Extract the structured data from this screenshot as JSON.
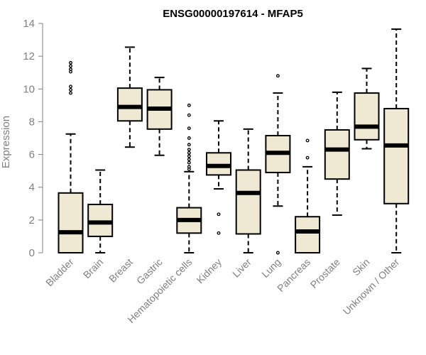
{
  "chart_data": {
    "type": "boxplot",
    "title": "ENSG00000197614 - MFAP5",
    "xlabel": "",
    "ylabel": "Expression",
    "ylim": [
      0,
      14
    ],
    "yticks": [
      0,
      2,
      4,
      6,
      8,
      10,
      12,
      14
    ],
    "box_fill": "#efe8d2",
    "categories": [
      "Bladder",
      "Brain",
      "Breast",
      "Gastric",
      "Hematopoietic cells",
      "Kidney",
      "Liver",
      "Lung",
      "Pancreas",
      "Prostate",
      "Skin",
      "Unknown / Other"
    ],
    "boxes": [
      {
        "category": "Bladder",
        "whisker_low": 0,
        "q1": 0,
        "median": 1.25,
        "q3": 3.65,
        "whisker_high": 7.25,
        "outliers": [
          9.75,
          9.95,
          10.15,
          11.05,
          11.2,
          11.4,
          11.6
        ]
      },
      {
        "category": "Brain",
        "whisker_low": 0,
        "q1": 1.0,
        "median": 1.85,
        "q3": 2.95,
        "whisker_high": 5.05,
        "outliers": []
      },
      {
        "category": "Breast",
        "whisker_low": 6.45,
        "q1": 8.05,
        "median": 8.9,
        "q3": 10.05,
        "whisker_high": 12.55,
        "outliers": []
      },
      {
        "category": "Gastric",
        "whisker_low": 5.95,
        "q1": 7.55,
        "median": 8.8,
        "q3": 9.95,
        "whisker_high": 10.7,
        "outliers": []
      },
      {
        "category": "Hematopoietic cells",
        "whisker_low": 0,
        "q1": 1.2,
        "median": 2.0,
        "q3": 2.75,
        "whisker_high": 4.95,
        "outliers": [
          5.1,
          5.25,
          5.5,
          5.7,
          5.9,
          6.1,
          6.3,
          6.6,
          7.0,
          7.6,
          8.4,
          9.0
        ]
      },
      {
        "category": "Kidney",
        "whisker_low": 3.9,
        "q1": 4.75,
        "median": 5.3,
        "q3": 6.1,
        "whisker_high": 8.05,
        "outliers": [
          1.2,
          2.35
        ]
      },
      {
        "category": "Liver",
        "whisker_low": 0,
        "q1": 1.15,
        "median": 3.65,
        "q3": 5.05,
        "whisker_high": 7.55,
        "outliers": []
      },
      {
        "category": "Lung",
        "whisker_low": 2.85,
        "q1": 4.9,
        "median": 6.1,
        "q3": 7.15,
        "whisker_high": 9.75,
        "outliers": [
          0.0,
          10.8
        ]
      },
      {
        "category": "Pancreas",
        "whisker_low": 0,
        "q1": 0,
        "median": 1.3,
        "q3": 2.2,
        "whisker_high": 5.25,
        "outliers": [
          5.8,
          6.85
        ]
      },
      {
        "category": "Prostate",
        "whisker_low": 2.3,
        "q1": 4.5,
        "median": 6.3,
        "q3": 7.5,
        "whisker_high": 9.8,
        "outliers": []
      },
      {
        "category": "Skin",
        "whisker_low": 6.35,
        "q1": 6.9,
        "median": 7.7,
        "q3": 9.75,
        "whisker_high": 11.25,
        "outliers": []
      },
      {
        "category": "Unknown / Other",
        "whisker_low": 0,
        "q1": 3.0,
        "median": 6.55,
        "q3": 8.8,
        "whisker_high": 13.65,
        "outliers": []
      }
    ]
  }
}
